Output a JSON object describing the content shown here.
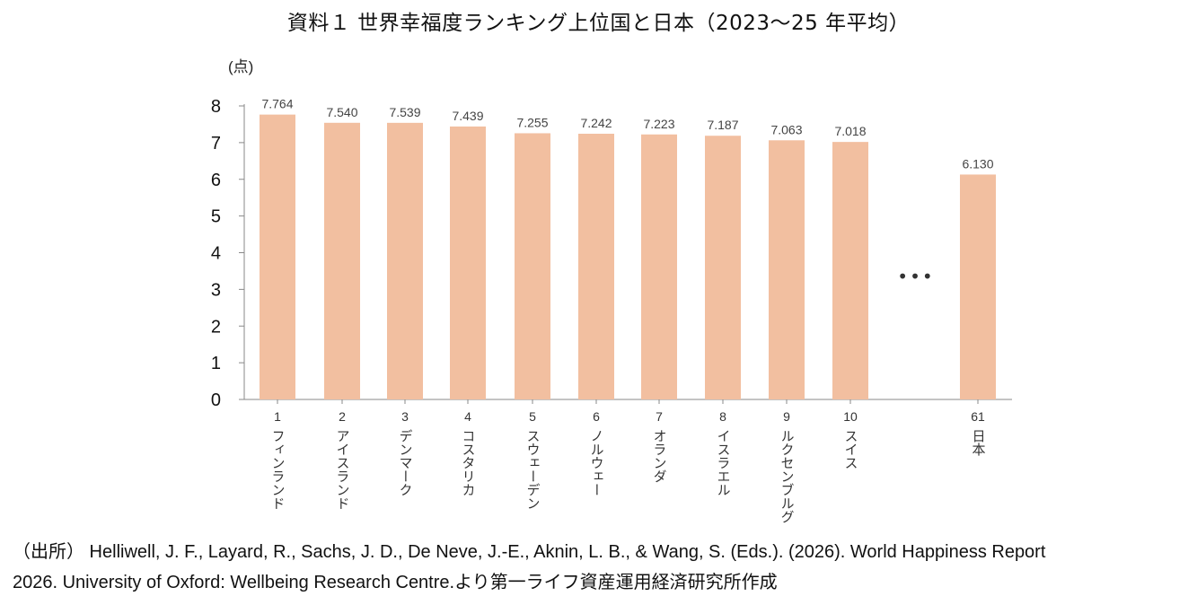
{
  "title": "資料１ 世界幸福度ランキング上位国と日本（2023～25 年平均）",
  "chart_data": {
    "type": "bar",
    "title": "資料１ 世界幸福度ランキング上位国と日本（2023～25 年平均）",
    "ylabel": "(点)",
    "xlabel": "",
    "ylim": [
      0,
      8
    ],
    "yticks": [
      "0",
      "1",
      "2",
      "3",
      "4",
      "5",
      "6",
      "7",
      "8"
    ],
    "grid": false,
    "bar_color": "#f2bfa0",
    "ellipsis": "•••",
    "bars": [
      {
        "rank": "1",
        "name": "フィンランド",
        "value": 7.764,
        "label": "7.764"
      },
      {
        "rank": "2",
        "name": "アイスランド",
        "value": 7.54,
        "label": "7.540"
      },
      {
        "rank": "3",
        "name": "デンマーク",
        "value": 7.539,
        "label": "7.539"
      },
      {
        "rank": "4",
        "name": "コスタリカ",
        "value": 7.439,
        "label": "7.439"
      },
      {
        "rank": "5",
        "name": "スウェーデン",
        "value": 7.255,
        "label": "7.255"
      },
      {
        "rank": "6",
        "name": "ノルウェー",
        "value": 7.242,
        "label": "7.242"
      },
      {
        "rank": "7",
        "name": "オランダ",
        "value": 7.223,
        "label": "7.223"
      },
      {
        "rank": "8",
        "name": "イスラエル",
        "value": 7.187,
        "label": "7.187"
      },
      {
        "rank": "9",
        "name": "ルクセンブルグ",
        "value": 7.063,
        "label": "7.063"
      },
      {
        "rank": "10",
        "name": "スイス",
        "value": 7.018,
        "label": "7.018"
      },
      {
        "rank": "61",
        "name": "日本",
        "value": 6.13,
        "label": "6.130"
      }
    ]
  },
  "source": {
    "line1": "（出所） Helliwell, J. F., Layard, R., Sachs, J. D., De Neve, J.-E., Aknin, L. B., & Wang, S. (Eds.). (2026). World Happiness Report",
    "line2": "2026. University of Oxford: Wellbeing Research Centre.より第一ライフ資産運用経済研究所作成"
  }
}
